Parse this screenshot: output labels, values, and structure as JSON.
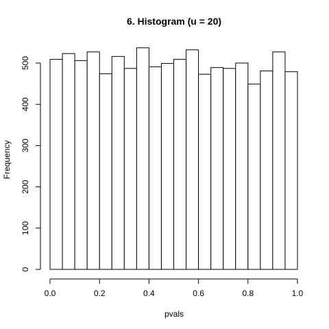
{
  "chart_data": {
    "type": "bar",
    "title": "6. Histogram (u = 20)",
    "xlabel": "pvals",
    "ylabel": "Frequency",
    "bin_edges": [
      0.0,
      0.05,
      0.1,
      0.15,
      0.2,
      0.25,
      0.3,
      0.35,
      0.4,
      0.45,
      0.5,
      0.55,
      0.6,
      0.65,
      0.7,
      0.75,
      0.8,
      0.85,
      0.9,
      0.95,
      1.0
    ],
    "values": [
      509,
      523,
      506,
      527,
      474,
      516,
      487,
      537,
      491,
      499,
      509,
      532,
      473,
      489,
      487,
      500,
      449,
      481,
      527,
      479
    ],
    "xlim": [
      0.0,
      1.0
    ],
    "ylim": [
      0,
      540
    ],
    "x_ticks": [
      "0.0",
      "0.2",
      "0.4",
      "0.6",
      "0.8",
      "1.0"
    ],
    "y_ticks": [
      "0",
      "100",
      "200",
      "300",
      "400",
      "500"
    ],
    "bar_fill": "#ffffff",
    "bar_stroke": "#000000",
    "grid": false,
    "legend": "none"
  }
}
